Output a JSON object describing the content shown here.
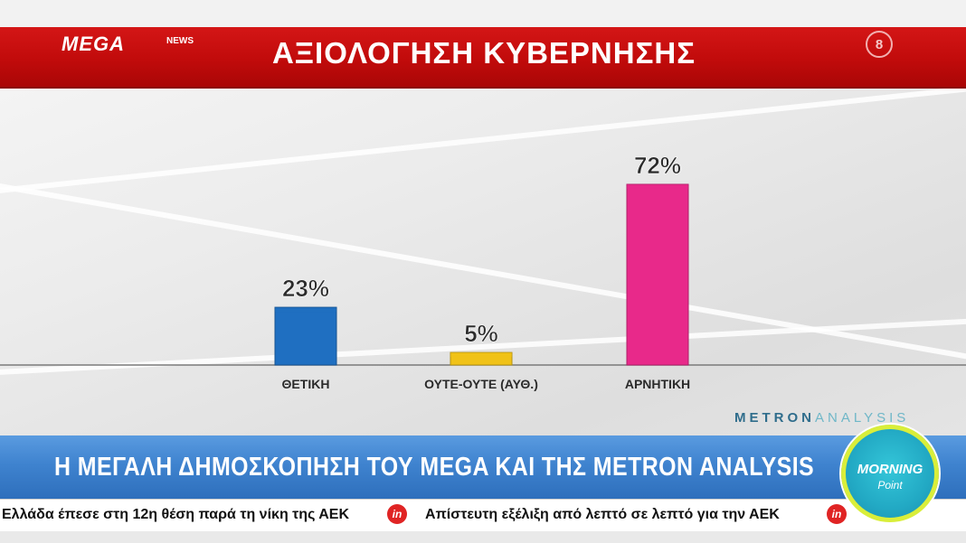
{
  "header": {
    "logo": "MEGA",
    "logo_sub": "NEWS",
    "title": "ΑΞΙΟΛΟΓΗΣΗ ΚΥΒΕΡΝΗΣΗΣ",
    "channel_badge": "8"
  },
  "chart_data": {
    "type": "bar",
    "title": "ΑΞΙΟΛΟΓΗΣΗ ΚΥΒΕΡΝΗΣΗΣ",
    "categories": [
      "ΘΕΤΙΚΗ",
      "ΟΥΤΕ-ΟΥΤΕ (ΑΥΘ.)",
      "ΑΡΝΗΤΙΚΗ"
    ],
    "values": [
      23,
      5,
      72
    ],
    "value_labels": [
      "23%",
      "5%",
      "72%"
    ],
    "colors": [
      "#1f6fc1",
      "#f0c218",
      "#e8298a"
    ],
    "unit": "%",
    "ylim": [
      0,
      100
    ],
    "grid": false,
    "legend": "none"
  },
  "source": {
    "brand_left": "METRON",
    "brand_right": "ANALYSIS"
  },
  "banner": {
    "text": "Η ΜΕΓΑΛΗ ΔΗΜΟΣΚΟΠΗΣΗ ΤΟΥ MEGA ΚΑΙ ΤΗΣ METRON ANALYSIS"
  },
  "ticker": {
    "items": [
      "Ελλάδα έπεσε στη 12η θέση παρά τη νίκη της ΑΕΚ",
      "Απίστευτη εξέλιξη από λεπτό σε λεπτό για την ΑΕΚ"
    ],
    "icon_label": "in"
  },
  "show_badge": {
    "line1": "MORNING",
    "line2": "Point"
  }
}
